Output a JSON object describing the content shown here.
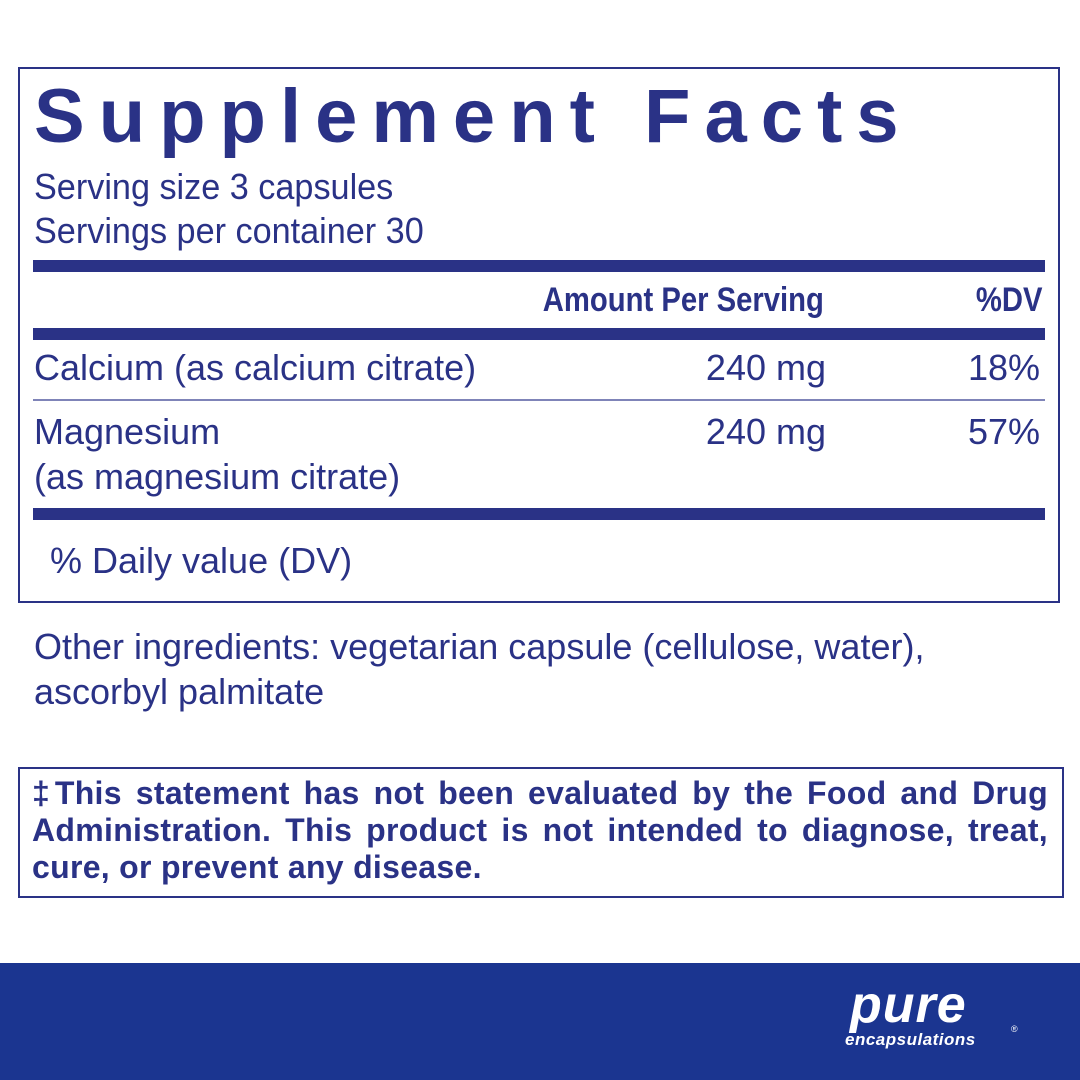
{
  "label": {
    "title": "Supplement Facts",
    "serving_size": "Serving size  3 capsules",
    "servings_per_container": "Servings per container  30",
    "header_amount": "Amount Per Serving",
    "header_dv": "%DV",
    "rows": [
      {
        "name": "Calcium (as calcium citrate)",
        "amount": "240 mg",
        "dv": "18%"
      },
      {
        "name": "Magnesium",
        "name_line2": "(as magnesium citrate)",
        "amount": "240 mg",
        "dv": "57%"
      }
    ],
    "footnote": "% Daily value (DV)"
  },
  "other_ingredients": "Other ingredients: vegetarian capsule (cellulose, water), ascorbyl palmitate",
  "disclaimer": "‡This statement has not been evaluated by the Food and Drug Administration. This product is not intended to diagnose, treat, cure, or prevent any disease.",
  "brand": {
    "name": "pure",
    "subname": "encapsulations",
    "registered": "®"
  },
  "colors": {
    "text": "#2a3286",
    "banner": "#1b3590"
  }
}
